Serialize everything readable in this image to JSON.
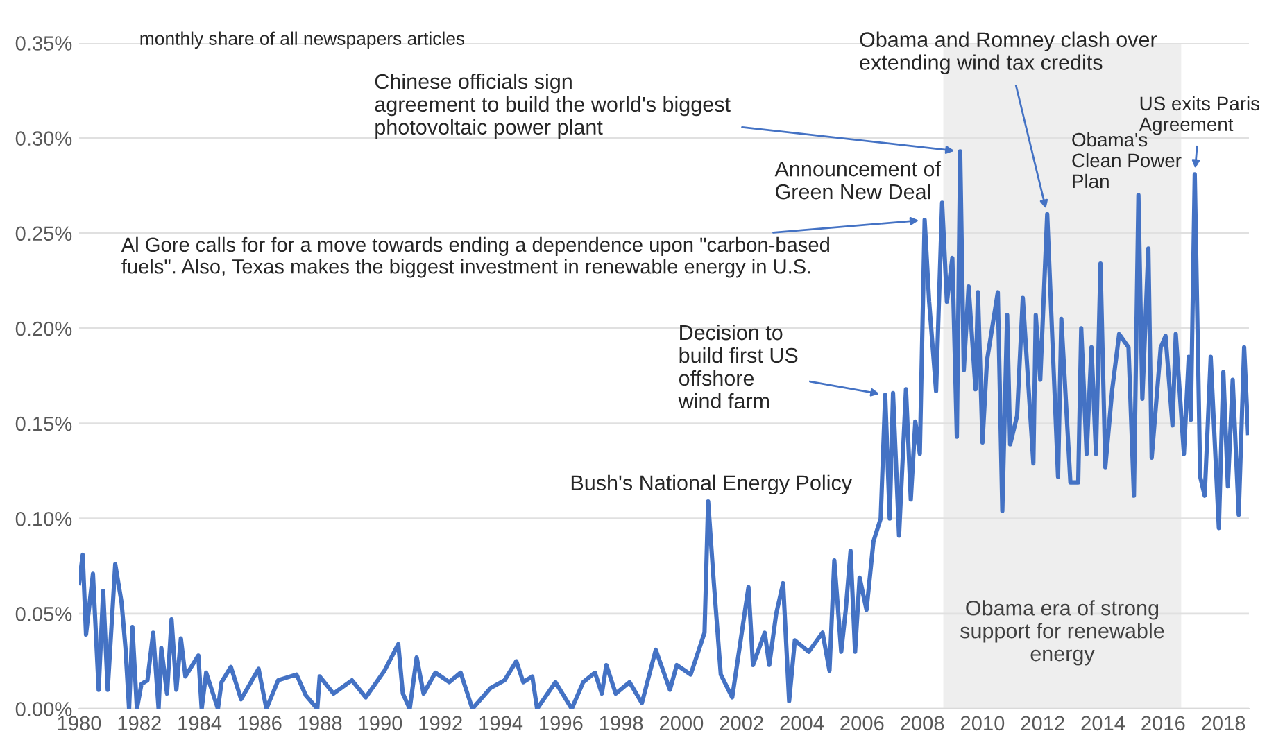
{
  "chart_data": {
    "type": "line",
    "x": [
      1980.0,
      1980.12,
      1980.23,
      1980.46,
      1980.65,
      1980.8,
      1980.95,
      1981.2,
      1981.41,
      1981.54,
      1981.66,
      1981.77,
      1981.92,
      1982.07,
      1982.27,
      1982.46,
      1982.64,
      1982.73,
      1982.92,
      1983.07,
      1983.23,
      1983.38,
      1983.53,
      1983.96,
      1984.07,
      1984.22,
      1984.61,
      1984.73,
      1985.04,
      1985.38,
      1985.96,
      1986.22,
      1986.61,
      1987.22,
      1987.53,
      1987.91,
      1987.99,
      1988.45,
      1989.06,
      1989.52,
      1990.14,
      1990.6,
      1990.75,
      1990.98,
      1991.21,
      1991.44,
      1991.83,
      1992.29,
      1992.67,
      1993.06,
      1993.67,
      1994.13,
      1994.52,
      1994.75,
      1995.05,
      1995.21,
      1995.82,
      1996.36,
      1996.74,
      1997.13,
      1997.36,
      1997.51,
      1997.82,
      1998.28,
      1998.69,
      1999.15,
      1999.62,
      1999.85,
      2000.31,
      2000.54,
      2000.77,
      2000.89,
      2001.08,
      2001.31,
      2001.69,
      2002.23,
      2002.38,
      2002.77,
      2002.92,
      2003.15,
      2003.38,
      2003.58,
      2003.77,
      2004.23,
      2004.69,
      2004.92,
      2005.08,
      2005.31,
      2005.46,
      2005.62,
      2005.77,
      2005.92,
      2006.15,
      2006.38,
      2006.62,
      2006.77,
      2006.92,
      2007.03,
      2007.23,
      2007.46,
      2007.62,
      2007.77,
      2007.92,
      2008.08,
      2008.23,
      2008.46,
      2008.66,
      2008.82,
      2009.0,
      2009.15,
      2009.26,
      2009.38,
      2009.54,
      2009.77,
      2009.85,
      2010.0,
      2010.15,
      2010.51,
      2010.66,
      2010.82,
      2010.92,
      2011.15,
      2011.34,
      2011.69,
      2011.77,
      2011.92,
      2012.15,
      2012.51,
      2012.62,
      2012.92,
      2013.18,
      2013.28,
      2013.46,
      2013.62,
      2013.77,
      2013.92,
      2014.08,
      2014.31,
      2014.54,
      2014.85,
      2015.03,
      2015.18,
      2015.31,
      2015.51,
      2015.62,
      2015.92,
      2016.08,
      2016.31,
      2016.42,
      2016.69,
      2016.85,
      2016.92,
      2017.05,
      2017.23,
      2017.38,
      2017.58,
      2017.85,
      2018.0,
      2018.15,
      2018.31,
      2018.51,
      2018.69,
      2018.82
    ],
    "series": [
      {
        "color": "#4472c4",
        "values": [
          0.066,
          0.081,
          0.039,
          0.071,
          0.01,
          0.062,
          0.01,
          0.076,
          0.056,
          0.032,
          0.0,
          0.043,
          0.0,
          0.013,
          0.015,
          0.04,
          0.0,
          0.032,
          0.008,
          0.047,
          0.01,
          0.037,
          0.017,
          0.028,
          0.0,
          0.019,
          0.0,
          0.014,
          0.022,
          0.005,
          0.021,
          0.0,
          0.015,
          0.018,
          0.007,
          0.0,
          0.017,
          0.008,
          0.015,
          0.006,
          0.02,
          0.034,
          0.008,
          0.0,
          0.027,
          0.008,
          0.019,
          0.014,
          0.019,
          0.0,
          0.011,
          0.015,
          0.025,
          0.014,
          0.017,
          0.0,
          0.014,
          0.0,
          0.014,
          0.019,
          0.008,
          0.023,
          0.008,
          0.014,
          0.003,
          0.031,
          0.01,
          0.023,
          0.018,
          0.029,
          0.04,
          0.109,
          0.066,
          0.018,
          0.006,
          0.064,
          0.023,
          0.04,
          0.023,
          0.05,
          0.066,
          0.004,
          0.036,
          0.03,
          0.04,
          0.02,
          0.078,
          0.03,
          0.052,
          0.083,
          0.03,
          0.069,
          0.052,
          0.088,
          0.1,
          0.165,
          0.1,
          0.166,
          0.091,
          0.168,
          0.11,
          0.151,
          0.134,
          0.257,
          0.214,
          0.167,
          0.266,
          0.214,
          0.237,
          0.143,
          0.293,
          0.178,
          0.222,
          0.168,
          0.219,
          0.14,
          0.183,
          0.219,
          0.104,
          0.207,
          0.139,
          0.154,
          0.216,
          0.129,
          0.207,
          0.173,
          0.26,
          0.122,
          0.205,
          0.119,
          0.119,
          0.2,
          0.134,
          0.19,
          0.134,
          0.234,
          0.127,
          0.168,
          0.197,
          0.19,
          0.112,
          0.27,
          0.163,
          0.242,
          0.132,
          0.19,
          0.196,
          0.149,
          0.197,
          0.134,
          0.185,
          0.152,
          0.281,
          0.122,
          0.112,
          0.185,
          0.095,
          0.177,
          0.117,
          0.173,
          0.102,
          0.19,
          0.145
        ]
      }
    ],
    "xlim": [
      1980,
      2018.85
    ],
    "xticks": [
      1980,
      1982,
      1984,
      1986,
      1988,
      1990,
      1992,
      1994,
      1996,
      1998,
      2000,
      2002,
      2004,
      2006,
      2008,
      2010,
      2012,
      2014,
      2016,
      2018
    ],
    "ylim": [
      0,
      0.35
    ],
    "yticks": [
      {
        "value": 0,
        "label": "0.00%"
      },
      {
        "value": 0.05,
        "label": "0.05%"
      },
      {
        "value": 0.1,
        "label": "0.10%"
      },
      {
        "value": 0.15,
        "label": "0.15%"
      },
      {
        "value": 0.2,
        "label": "0.20%"
      },
      {
        "value": 0.25,
        "label": "0.25%"
      },
      {
        "value": 0.3,
        "label": "0.30%"
      },
      {
        "value": 0.35,
        "label": "0.35%"
      }
    ],
    "grid": "y",
    "bands": [
      {
        "axis": "x",
        "from": 2008.7,
        "to": 2016.6,
        "label": "Obama era of strong\nsupport for renewable\nenergy",
        "color": "#eeeeee"
      }
    ],
    "annotations": [
      "monthly share of all newspapers articles",
      {
        "text": "Chinese officials sign\nagreement to build the world's biggest\nphotovoltaic power plant",
        "x": 2009.26,
        "y": 0.293
      },
      {
        "text": "Obama and Romney clash over\nextending wind tax credits",
        "x": 2012.15,
        "y": 0.26
      },
      {
        "text": "US exits Paris\nAgreement",
        "x": 2017.05,
        "y": 0.281
      },
      {
        "text": "Obama's\nClean Power\nPlan",
        "x": 2015.18,
        "y": 0.27
      },
      {
        "text": "Announcement of\nGreen New Deal",
        "x": 2008.08,
        "y": 0.257
      },
      {
        "text": "Al Gore calls for for a move towards ending a dependence upon \"carbon-based\nfuels\". Also, Texas makes the biggest investment in renewable energy in U.S.",
        "x": 2008.08,
        "y": 0.257
      },
      {
        "text": "Decision to\nbuild first US\noffshore\nwind farm",
        "x": 2006.77,
        "y": 0.165
      },
      {
        "text": "Bush's National Energy Policy",
        "x": 2000.89,
        "y": 0.109
      }
    ]
  }
}
